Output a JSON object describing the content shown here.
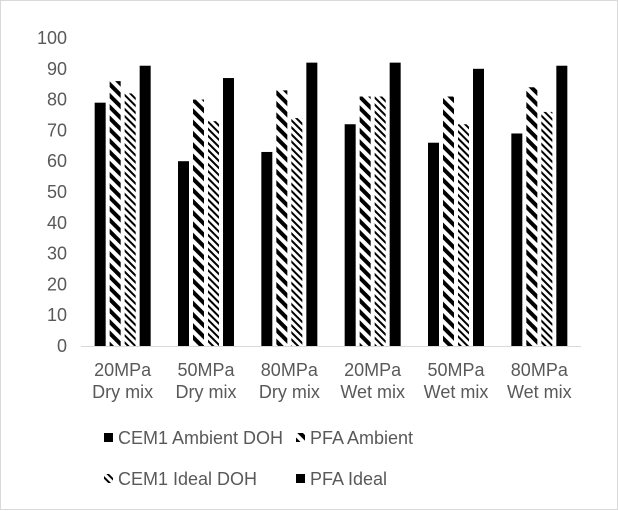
{
  "chart_data": {
    "type": "bar",
    "title": "",
    "xlabel": "",
    "ylabel": "",
    "ylim": [
      0,
      100
    ],
    "yticks": [
      "0",
      "10",
      "20",
      "30",
      "40",
      "50",
      "60",
      "70",
      "80",
      "90",
      "100"
    ],
    "grid": false,
    "legend_position": "bottom",
    "categories": [
      [
        "20MPa",
        "Dry mix"
      ],
      [
        "50MPa",
        "Dry mix"
      ],
      [
        "80MPa",
        "Dry mix"
      ],
      [
        "20MPa",
        "Wet mix"
      ],
      [
        "50MPa",
        "Wet mix"
      ],
      [
        "80MPa",
        "Wet mix"
      ]
    ],
    "series": [
      {
        "name": "CEM1 Ambient DOH",
        "fill": "solid",
        "values": [
          79,
          60,
          63,
          72,
          66,
          69
        ]
      },
      {
        "name": "PFA Ambient",
        "fill": "wide-diagonal-stripe",
        "values": [
          86,
          80,
          83,
          81,
          81,
          84
        ]
      },
      {
        "name": "CEM1 Ideal DOH",
        "fill": "narrow-diagonal-stripe",
        "values": [
          82,
          73,
          74,
          81,
          72,
          76
        ]
      },
      {
        "name": "PFA Ideal",
        "fill": "solid",
        "values": [
          91,
          87,
          92,
          92,
          90,
          91
        ]
      }
    ],
    "colors": {
      "bar": "#000000",
      "axis": "#d9d9d9",
      "text": "#595959"
    }
  }
}
